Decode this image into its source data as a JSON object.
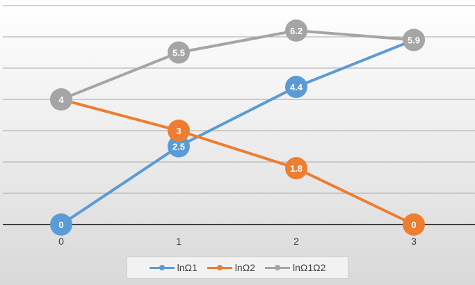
{
  "chart_data": {
    "type": "line",
    "categories": [
      "0",
      "1",
      "2",
      "3"
    ],
    "series": [
      {
        "name": "lnΩ1",
        "values": [
          0,
          2.5,
          4.4,
          5.9
        ],
        "labels": [
          "0",
          "2.5",
          "4.4",
          "5.9"
        ],
        "color": "#5b9bd5"
      },
      {
        "name": "lnΩ2",
        "values": [
          4,
          3,
          1.8,
          0
        ],
        "labels": [
          "4",
          "3",
          "1.8",
          "0"
        ],
        "color": "#ed7d31"
      },
      {
        "name": "lnΩ1Ω2",
        "values": [
          4,
          5.5,
          6.2,
          5.9
        ],
        "labels": [
          "4",
          "5.5",
          "6.2",
          "5.9"
        ],
        "color": "#a5a5a5"
      }
    ],
    "ylim": [
      0,
      7
    ],
    "grid": true,
    "legend_position": "bottom"
  }
}
